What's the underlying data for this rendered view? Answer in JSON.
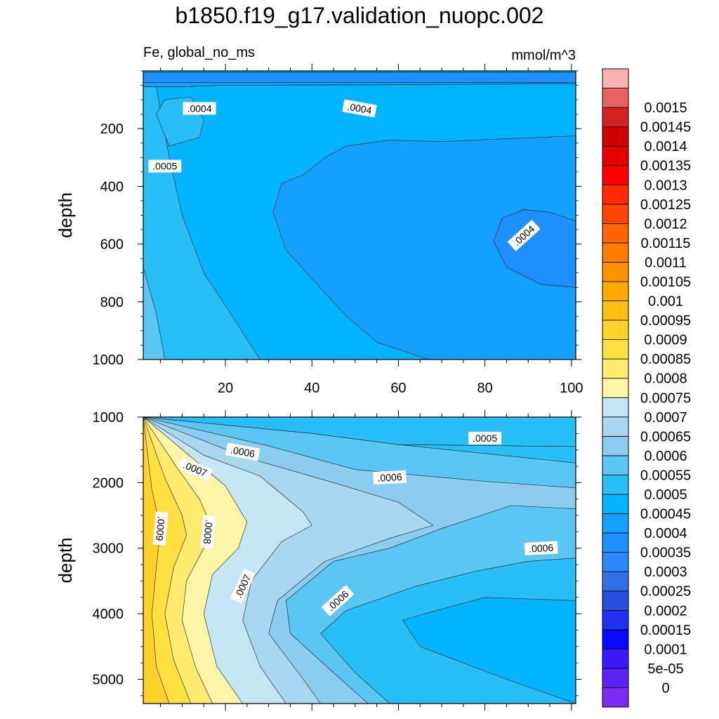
{
  "chart_data": {
    "type": "contour",
    "title": "b1850.f19_g17.validation_nuopc.002",
    "left_string": "Fe, global_no_ms",
    "right_string": "mmol/m^3",
    "ylabel": "depth",
    "xlim": [
      1,
      101
    ],
    "x_ticks": [
      "20",
      "40",
      "60",
      "80",
      "100"
    ],
    "panels": [
      {
        "name": "upper",
        "ylim": [
          0,
          1000
        ],
        "y_ticks": [
          "200",
          "400",
          "600",
          "800",
          "1000"
        ],
        "regions": [
          {
            "level": "0.00035",
            "color": "#1e90ff",
            "pts": [
              [
                1,
                5
              ],
              [
                101,
                5
              ],
              [
                101,
                40
              ],
              [
                1,
                40
              ]
            ]
          },
          {
            "level": "0.0004",
            "color": "#14a0ff",
            "pts": [
              [
                1,
                40
              ],
              [
                101,
                40
              ],
              [
                101,
                45
              ],
              [
                80,
                46
              ],
              [
                60,
                48
              ],
              [
                40,
                49
              ],
              [
                20,
                50
              ],
              [
                10,
                55
              ],
              [
                1,
                55
              ]
            ]
          },
          {
            "level": "0.00045",
            "color": "#00b4ff",
            "pts": [
              [
                1,
                55
              ],
              [
                10,
                55
              ],
              [
                20,
                50
              ],
              [
                40,
                49
              ],
              [
                60,
                48
              ],
              [
                80,
                46
              ],
              [
                101,
                45
              ],
              [
                101,
                1000
              ],
              [
                1,
                1000
              ]
            ]
          },
          {
            "level": "0.0005",
            "color": "#28bef8",
            "pts": [
              [
                1,
                55
              ],
              [
                4,
                55
              ],
              [
                7,
                300
              ],
              [
                10,
                500
              ],
              [
                15,
                700
              ],
              [
                22,
                860
              ],
              [
                28,
                1000
              ],
              [
                1,
                1000
              ]
            ]
          },
          {
            "level": "0.0005",
            "color": "#28bef8",
            "pts": [
              [
                12,
                90
              ],
              [
                15,
                170
              ],
              [
                14,
                230
              ],
              [
                7,
                260
              ],
              [
                4,
                150
              ],
              [
                6,
                100
              ]
            ]
          },
          {
            "level": "0.00055",
            "color": "#5ac6f4",
            "pts": [
              [
                1,
                680
              ],
              [
                4,
                840
              ],
              [
                6,
                1000
              ],
              [
                1,
                1000
              ]
            ]
          },
          {
            "level": "0.0004",
            "color": "#14a0ff",
            "pts": [
              [
                31,
                490
              ],
              [
                33,
                390
              ],
              [
                38,
                360
              ],
              [
                43,
                300
              ],
              [
                48,
                260
              ],
              [
                58,
                240
              ],
              [
                70,
                245
              ],
              [
                85,
                235
              ],
              [
                101,
                225
              ],
              [
                101,
                1000
              ],
              [
                67,
                1000
              ],
              [
                55,
                940
              ],
              [
                48,
                850
              ],
              [
                40,
                720
              ],
              [
                34,
                620
              ]
            ]
          },
          {
            "level": "0.00035",
            "color": "#1e90ff",
            "pts": [
              [
                82,
                590
              ],
              [
                84,
                510
              ],
              [
                89,
                480
              ],
              [
                95,
                490
              ],
              [
                101,
                520
              ],
              [
                101,
                750
              ],
              [
                93,
                740
              ],
              [
                85,
                680
              ]
            ]
          }
        ],
        "contour_labels": [
          {
            "text": ".0004",
            "x": 14,
            "y": 130,
            "angle": 0
          },
          {
            "text": ".0004",
            "x": 51,
            "y": 130,
            "angle": 10
          },
          {
            "text": ".0005",
            "x": 6,
            "y": 330,
            "angle": 0
          },
          {
            "text": ".0004",
            "x": 89,
            "y": 570,
            "angle": -42
          }
        ]
      },
      {
        "name": "lower",
        "ylim": [
          1000,
          5370
        ],
        "y_ticks": [
          "1000",
          "2000",
          "3000",
          "4000",
          "5000"
        ],
        "regions": [
          {
            "level": "0.00045",
            "color": "#00b4ff",
            "pts": [
              [
                1,
                1000
              ],
              [
                101,
                1000
              ],
              [
                101,
                5370
              ],
              [
                1,
                5370
              ]
            ]
          },
          {
            "level": "0.0005",
            "color": "#28bef8",
            "pts": [
              [
                1,
                1000
              ],
              [
                101,
                1000
              ],
              [
                101,
                1450
              ],
              [
                60,
                1420
              ],
              [
                40,
                1250
              ],
              [
                1,
                1000
              ]
            ]
          },
          {
            "level": "0.0005",
            "color": "#28bef8",
            "pts": [
              [
                1,
                1000
              ],
              [
                101,
                1000
              ],
              [
                101,
                1000
              ],
              [
                1,
                1000
              ]
            ]
          },
          {
            "level": "0.0005",
            "color": "#28bef8",
            "pts": [
              [
                1,
                1000
              ],
              [
                60,
                1420
              ],
              [
                101,
                1450
              ],
              [
                101,
                3800
              ],
              [
                80,
                3750
              ],
              [
                66,
                4000
              ],
              [
                61,
                4100
              ],
              [
                65,
                4500
              ],
              [
                85,
                5000
              ],
              [
                101,
                5370
              ],
              [
                1,
                5370
              ]
            ]
          },
          {
            "level": "0.00055",
            "color": "#5ac6f4",
            "pts": [
              [
                1,
                1000
              ],
              [
                40,
                1250
              ],
              [
                60,
                1420
              ],
              [
                101,
                1700
              ],
              [
                101,
                3150
              ],
              [
                90,
                3200
              ],
              [
                78,
                3350
              ],
              [
                64,
                3580
              ],
              [
                48,
                3950
              ],
              [
                42,
                4300
              ],
              [
                50,
                4900
              ],
              [
                58,
                5370
              ],
              [
                1,
                5370
              ]
            ]
          },
          {
            "level": "0.0006",
            "color": "#8cccf0",
            "pts": [
              [
                1,
                1000
              ],
              [
                30,
                1440
              ],
              [
                50,
                1800
              ],
              [
                80,
                1980
              ],
              [
                101,
                2080
              ],
              [
                101,
                2400
              ],
              [
                86,
                2350
              ],
              [
                70,
                2700
              ],
              [
                58,
                3000
              ],
              [
                45,
                3200
              ],
              [
                34,
                3800
              ],
              [
                35,
                4300
              ],
              [
                45,
                4900
              ],
              [
                53,
                5370
              ],
              [
                1,
                5370
              ]
            ]
          },
          {
            "level": "0.00065",
            "color": "#a8d8f0",
            "pts": [
              [
                1,
                1000
              ],
              [
                25,
                1620
              ],
              [
                45,
                2000
              ],
              [
                60,
                2300
              ],
              [
                68,
                2650
              ],
              [
                58,
                2850
              ],
              [
                43,
                3200
              ],
              [
                32,
                3800
              ],
              [
                30,
                4300
              ],
              [
                38,
                5000
              ],
              [
                42,
                5370
              ],
              [
                1,
                5370
              ]
            ]
          },
          {
            "level": "0.0007",
            "color": "#c4e6f4",
            "pts": [
              [
                1,
                1000
              ],
              [
                15,
                1580
              ],
              [
                28,
                1900
              ],
              [
                38,
                2450
              ],
              [
                40,
                2650
              ],
              [
                33,
                2900
              ],
              [
                26,
                3500
              ],
              [
                24,
                4100
              ],
              [
                28,
                4800
              ],
              [
                34,
                5370
              ],
              [
                1,
                5370
              ]
            ]
          },
          {
            "level": "0.00075",
            "color": "#fff5a8",
            "pts": [
              [
                1,
                1000
              ],
              [
                13,
                1660
              ],
              [
                20,
                2050
              ],
              [
                25,
                2600
              ],
              [
                23,
                3000
              ],
              [
                17,
                3400
              ],
              [
                15,
                4000
              ],
              [
                18,
                4800
              ],
              [
                24,
                5370
              ],
              [
                1,
                5370
              ]
            ]
          },
          {
            "level": "0.0008",
            "color": "#ffeb70",
            "pts": [
              [
                1,
                1000
              ],
              [
                9,
                1790
              ],
              [
                14,
                2250
              ],
              [
                17,
                2700
              ],
              [
                15,
                3000
              ],
              [
                11,
                3500
              ],
              [
                10,
                4100
              ],
              [
                13,
                4800
              ],
              [
                17,
                5370
              ],
              [
                1,
                5370
              ]
            ]
          },
          {
            "level": "0.00085",
            "color": "#ffe040",
            "pts": [
              [
                1,
                1000
              ],
              [
                6,
                1930
              ],
              [
                10,
                2500
              ],
              [
                11,
                2800
              ],
              [
                8,
                3300
              ],
              [
                6,
                4000
              ],
              [
                8,
                4700
              ],
              [
                12,
                5370
              ],
              [
                1,
                5370
              ]
            ]
          },
          {
            "level": "0.0009",
            "color": "#ffd22a",
            "pts": [
              [
                1,
                1000
              ],
              [
                3,
                2100
              ],
              [
                5,
                2700
              ],
              [
                4,
                3300
              ],
              [
                3,
                4000
              ],
              [
                4,
                4800
              ],
              [
                7,
                5370
              ],
              [
                1,
                5370
              ]
            ]
          }
        ],
        "contour_labels": [
          {
            "text": ".0006",
            "x": 24,
            "y": 1530,
            "angle": 10
          },
          {
            "text": ".0007",
            "x": 13,
            "y": 1790,
            "angle": 22
          },
          {
            "text": ".0005",
            "x": 80,
            "y": 1320,
            "angle": 0
          },
          {
            "text": ".0006",
            "x": 58,
            "y": 1920,
            "angle": -3
          },
          {
            "text": ".0009",
            "x": 5,
            "y": 2700,
            "angle": 95
          },
          {
            "text": ".0008",
            "x": 16,
            "y": 2750,
            "angle": 95
          },
          {
            "text": ".0006",
            "x": 93,
            "y": 3000,
            "angle": -3
          },
          {
            "text": ".0007",
            "x": 24,
            "y": 3580,
            "angle": -65
          },
          {
            "text": ".0006",
            "x": 46,
            "y": 3800,
            "angle": -42
          }
        ]
      }
    ],
    "colorbar": {
      "colors": [
        "#7d2bf0",
        "#5b22f5",
        "#3a1afa",
        "#0808ff",
        "#1e32f0",
        "#2850e0",
        "#3470e8",
        "#2888ff",
        "#1e90ff",
        "#14a0ff",
        "#00b4ff",
        "#28bef8",
        "#5ac6f4",
        "#8cccf0",
        "#a8d8f0",
        "#c4e6f4",
        "#fff5a8",
        "#ffeb70",
        "#ffe040",
        "#ffd22a",
        "#ffbe14",
        "#ffa800",
        "#ff9400",
        "#ff7e00",
        "#ff6400",
        "#ff4600",
        "#ff2a00",
        "#ff0000",
        "#e60000",
        "#d00000",
        "#d42222",
        "#e86060",
        "#ffb0b0"
      ],
      "labels": [
        "0",
        "5e-05",
        "0.0001",
        "0.00015",
        "0.0002",
        "0.00025",
        "0.0003",
        "0.00035",
        "0.0004",
        "0.00045",
        "0.0005",
        "0.00055",
        "0.0006",
        "0.00065",
        "0.0007",
        "0.00075",
        "0.0008",
        "0.00085",
        "0.0009",
        "0.00095",
        "0.001",
        "0.00105",
        "0.0011",
        "0.00115",
        "0.0012",
        "0.00125",
        "0.0013",
        "0.00135",
        "0.0014",
        "0.00145",
        "0.0015"
      ]
    }
  }
}
